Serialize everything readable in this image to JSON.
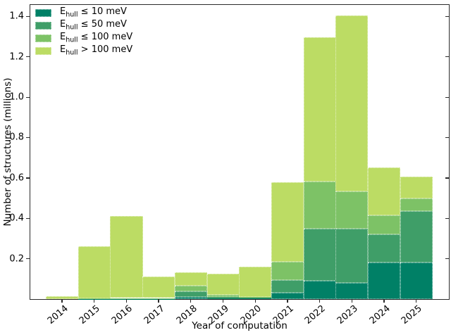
{
  "figure": {
    "background": "#ffffff",
    "frame_color": "#2b2b2b"
  },
  "chart_data": {
    "type": "bar",
    "subtype": "stacked-histogram",
    "title": "",
    "xlabel": "Year of computation",
    "ylabel": "Number of structures (millions)",
    "grid": false,
    "legend_position": "upper-left",
    "ylim": [
      0,
      1.46
    ],
    "yticks": [
      "0.2",
      "0.4",
      "0.6",
      "0.8",
      "1.0",
      "1.2",
      "1.4"
    ],
    "categories": [
      "2014",
      "2015",
      "2016",
      "2017",
      "2018",
      "2019",
      "2020",
      "2021",
      "2022",
      "2023",
      "2024",
      "2025"
    ],
    "series": [
      {
        "key": "le10",
        "name": "E_hull ≤ 10 meV",
        "label": {
          "pre": "E",
          "sub": "hull",
          "rest": "≤ 10 meV"
        },
        "color": "#008066",
        "values": [
          0.0,
          0.001,
          0.001,
          0.001,
          0.012,
          0.004,
          0.003,
          0.03,
          0.09,
          0.081,
          0.18,
          0.181
        ]
      },
      {
        "key": "le50",
        "name": "E_hull ≤ 50 meV",
        "label": {
          "pre": "E",
          "sub": "hull",
          "rest": "≤ 50 meV"
        },
        "color": "#3f9e68",
        "values": [
          0.0,
          0.001,
          0.001,
          0.001,
          0.025,
          0.006,
          0.003,
          0.064,
          0.258,
          0.266,
          0.14,
          0.255
        ]
      },
      {
        "key": "le100",
        "name": "E_hull ≤ 100 meV",
        "label": {
          "pre": "E",
          "sub": "hull",
          "rest": "≤ 100 meV"
        },
        "color": "#7dc266",
        "values": [
          0.0,
          0.003,
          0.003,
          0.003,
          0.029,
          0.012,
          0.004,
          0.091,
          0.234,
          0.187,
          0.095,
          0.063
        ]
      },
      {
        "key": "gt100",
        "name": "E_hull > 100 meV",
        "label": {
          "pre": "E",
          "sub": "hull",
          "rest": "> 100 meV"
        },
        "color": "#bcdc64",
        "values": [
          0.015,
          0.255,
          0.405,
          0.105,
          0.066,
          0.103,
          0.15,
          0.393,
          0.713,
          0.869,
          0.236,
          0.107
        ]
      }
    ],
    "totals": [
      0.015,
      0.26,
      0.41,
      0.11,
      0.132,
      0.125,
      0.16,
      0.578,
      1.295,
      1.403,
      0.651,
      0.606
    ]
  }
}
